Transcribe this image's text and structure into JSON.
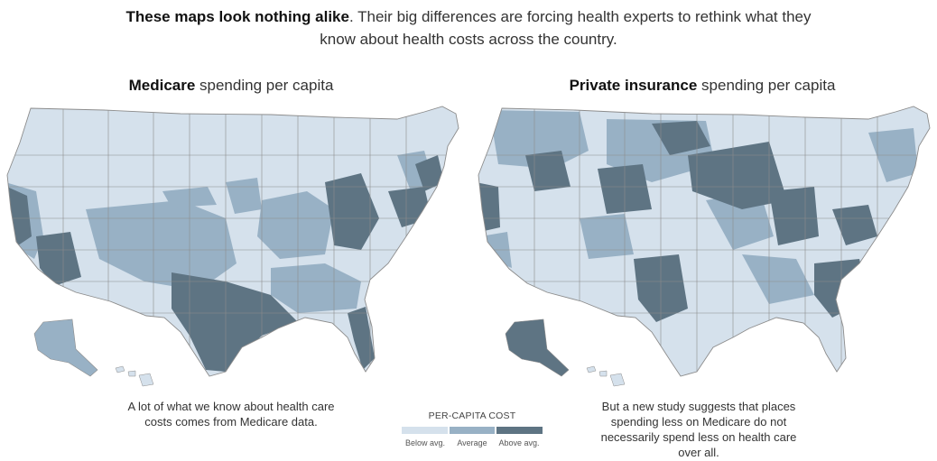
{
  "intro": {
    "lead": "These maps look nothing alike",
    "rest": ". Their big differences are forcing health experts to rethink what they know about health costs across the country."
  },
  "maps": {
    "left": {
      "title_bold": "Medicare",
      "title_rest": " spending per capita"
    },
    "right": {
      "title_bold": "Private insurance",
      "title_rest": " spending per capita"
    }
  },
  "captions": {
    "left": "A lot of what we know about health care costs comes from Medicare data.",
    "right": "But a new study suggests that places spending less on Medicare do not necessarily spend less on health care over all."
  },
  "legend": {
    "title": "PER-CAPITA COST",
    "levels": [
      {
        "label": "Below avg.",
        "color": "#d5e1ec"
      },
      {
        "label": "Average",
        "color": "#98b1c5"
      },
      {
        "label": "Above avg.",
        "color": "#5e7483"
      }
    ]
  },
  "colors": {
    "border": "#8c8c8c",
    "background": "#ffffff"
  }
}
